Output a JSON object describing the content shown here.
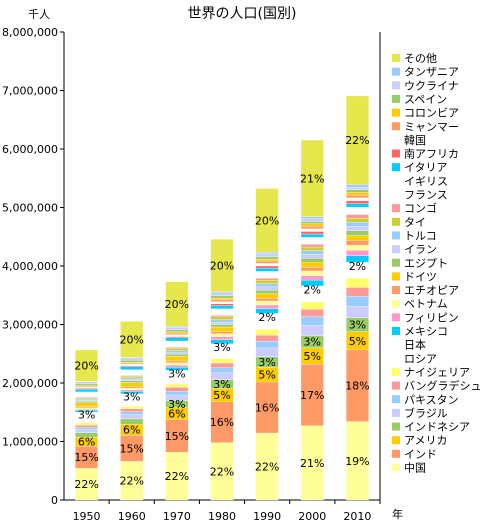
{
  "chart_data": {
    "type": "bar",
    "stacked": true,
    "title": "世界の人口(国別)",
    "ylabel": "千人",
    "xlabel": "年",
    "ylim": [
      0,
      8000000
    ],
    "yticks": [
      0,
      1000000,
      2000000,
      3000000,
      4000000,
      5000000,
      6000000,
      7000000,
      8000000
    ],
    "ytick_labels": [
      "0",
      "1,000,000",
      "2,000,000",
      "3,000,000",
      "4,000,000",
      "5,000,000",
      "6,000,000",
      "7,000,000",
      "8,000,000"
    ],
    "categories": [
      "1950",
      "1960",
      "1970",
      "1980",
      "1990",
      "2000",
      "2010"
    ],
    "grid": false,
    "legend_position": "right",
    "series": [
      {
        "name": "中国",
        "color": "#ffff99",
        "values": [
          545000,
          660000,
          818000,
          981000,
          1145000,
          1269000,
          1341000
        ],
        "labels": [
          "22%",
          "22%",
          "22%",
          "22%",
          "22%",
          "21%",
          "19%"
        ]
      },
      {
        "name": "インド",
        "color": "#ff9966",
        "values": [
          372000,
          448000,
          554000,
          697000,
          873000,
          1054000,
          1225000
        ],
        "labels": [
          "15%",
          "15%",
          "15%",
          "16%",
          "16%",
          "17%",
          "18%"
        ]
      },
      {
        "name": "アメリカ",
        "color": "#ffcc00",
        "values": [
          158000,
          186000,
          209000,
          230000,
          254000,
          282000,
          310000
        ],
        "labels": [
          "6%",
          "6%",
          "6%",
          "5%",
          "5%",
          "5%",
          "5%"
        ]
      },
      {
        "name": "インドネシア",
        "color": "#99cc66",
        "values": [
          75000,
          92000,
          117000,
          146000,
          178000,
          206000,
          240000
        ],
        "labels": [
          "",
          "",
          "3%",
          "3%",
          "3%",
          "3%",
          "3%"
        ]
      },
      {
        "name": "ブラジル",
        "color": "#ccccff",
        "values": [
          54000,
          72000,
          96000,
          121000,
          149000,
          174000,
          195000
        ],
        "labels": [
          "",
          "",
          "",
          "",
          "",
          "",
          ""
        ]
      },
      {
        "name": "パキスタン",
        "color": "#99ccff",
        "values": [
          37000,
          50000,
          65000,
          85000,
          115000,
          148000,
          174000
        ],
        "labels": [
          "",
          "",
          "",
          "",
          "",
          "",
          ""
        ]
      },
      {
        "name": "バングラデシュ",
        "color": "#ff9999",
        "values": [
          38000,
          51000,
          66000,
          82000,
          105000,
          129000,
          149000
        ],
        "labels": [
          "",
          "",
          "",
          "",
          "",
          "",
          ""
        ]
      },
      {
        "name": "ナイジェリア",
        "color": "#ffff66",
        "values": [
          38000,
          45000,
          57000,
          74000,
          97000,
          123000,
          158000
        ],
        "labels": [
          "",
          "",
          "",
          "",
          "",
          "",
          ""
        ]
      },
      {
        "name": "ロシア",
        "color": "#ffffff",
        "values": [
          103000,
          120000,
          130000,
          139000,
          148000,
          147000,
          143000
        ],
        "labels": [
          "",
          "",
          "",
          "",
          "",
          "",
          ""
        ]
      },
      {
        "name": "日本",
        "color": "#ffffff",
        "values": [
          84000,
          94000,
          104000,
          117000,
          124000,
          127000,
          128000
        ],
        "labels": [
          "3%",
          "3%",
          "3%",
          "3%",
          "2%",
          "2%",
          "2%"
        ]
      },
      {
        "name": "メキシコ",
        "color": "#00ccff",
        "values": [
          28000,
          38000,
          53000,
          69000,
          84000,
          100000,
          113000
        ],
        "labels": [
          "",
          "",
          "",
          "",
          "",
          "",
          ""
        ]
      },
      {
        "name": "フィリピン",
        "color": "#ff99cc",
        "values": [
          18000,
          26000,
          36000,
          48000,
          62000,
          78000,
          93000
        ],
        "labels": [
          "",
          "",
          "",
          "",
          "",
          "",
          ""
        ]
      },
      {
        "name": "ベトナム",
        "color": "#ffff99",
        "values": [
          25000,
          32000,
          43000,
          54000,
          68000,
          78000,
          88000
        ],
        "labels": [
          "",
          "",
          "",
          "",
          "",
          "",
          ""
        ]
      },
      {
        "name": "エチオピア",
        "color": "#ff9966",
        "values": [
          18000,
          22000,
          29000,
          36000,
          48000,
          66000,
          83000
        ],
        "labels": [
          "",
          "",
          "",
          "",
          "",
          "",
          ""
        ]
      },
      {
        "name": "ドイツ",
        "color": "#ffcc00",
        "values": [
          70000,
          73000,
          78000,
          78000,
          80000,
          82000,
          82000
        ],
        "labels": [
          "",
          "",
          "",
          "",
          "",
          "",
          ""
        ]
      },
      {
        "name": "エジプト",
        "color": "#99cc66",
        "values": [
          22000,
          28000,
          35000,
          44000,
          57000,
          68000,
          81000
        ],
        "labels": [
          "",
          "",
          "",
          "",
          "",
          "",
          ""
        ]
      },
      {
        "name": "イラン",
        "color": "#ccccff",
        "values": [
          17000,
          22000,
          29000,
          39000,
          56000,
          66000,
          74000
        ],
        "labels": [
          "",
          "",
          "",
          "",
          "",
          "",
          ""
        ]
      },
      {
        "name": "トルコ",
        "color": "#99ccff",
        "values": [
          21000,
          28000,
          35000,
          44000,
          56000,
          64000,
          73000
        ],
        "labels": [
          "",
          "",
          "",
          "",
          "",
          "",
          ""
        ]
      },
      {
        "name": "タイ",
        "color": "#cccc33",
        "values": [
          20000,
          27000,
          37000,
          47000,
          57000,
          63000,
          69000
        ],
        "labels": [
          "",
          "",
          "",
          "",
          "",
          "",
          ""
        ]
      },
      {
        "name": "コンゴ",
        "color": "#ff9999",
        "values": [
          12000,
          15000,
          20000,
          27000,
          37000,
          47000,
          62000
        ],
        "labels": [
          "",
          "",
          "",
          "",
          "",
          "",
          ""
        ]
      },
      {
        "name": "フランス",
        "color": "#ffffff",
        "values": [
          42000,
          46000,
          51000,
          54000,
          57000,
          59000,
          63000
        ],
        "labels": [
          "",
          "",
          "",
          "",
          "",
          "",
          ""
        ]
      },
      {
        "name": "イギリス",
        "color": "#ffffff",
        "values": [
          51000,
          53000,
          56000,
          56000,
          57000,
          59000,
          62000
        ],
        "labels": [
          "",
          "",
          "",
          "",
          "",
          "",
          ""
        ]
      },
      {
        "name": "イタリア",
        "color": "#00ccff",
        "values": [
          47000,
          50000,
          54000,
          56000,
          57000,
          57000,
          60000
        ],
        "labels": [
          "",
          "",
          "",
          "",
          "",
          "",
          ""
        ]
      },
      {
        "name": "南アフリカ",
        "color": "#ff6666",
        "values": [
          14000,
          17000,
          22000,
          29000,
          37000,
          45000,
          50000
        ],
        "labels": [
          "",
          "",
          "",
          "",
          "",
          "",
          ""
        ]
      },
      {
        "name": "韓国",
        "color": "#ffffff",
        "values": [
          19000,
          25000,
          32000,
          38000,
          43000,
          46000,
          48000
        ],
        "labels": [
          "",
          "",
          "",
          "",
          "",
          "",
          ""
        ]
      },
      {
        "name": "ミャンマー",
        "color": "#ff9966",
        "values": [
          17000,
          21000,
          27000,
          34000,
          41000,
          45000,
          48000
        ],
        "labels": [
          "",
          "",
          "",
          "",
          "",
          "",
          ""
        ]
      },
      {
        "name": "コロンビア",
        "color": "#ffcc00",
        "values": [
          12000,
          16000,
          21000,
          27000,
          34000,
          39000,
          46000
        ],
        "labels": [
          "",
          "",
          "",
          "",
          "",
          "",
          ""
        ]
      },
      {
        "name": "スペイン",
        "color": "#99cc66",
        "values": [
          28000,
          30000,
          34000,
          38000,
          39000,
          40000,
          46000
        ],
        "labels": [
          "",
          "",
          "",
          "",
          "",
          "",
          ""
        ]
      },
      {
        "name": "ウクライナ",
        "color": "#ccccff",
        "values": [
          37000,
          42000,
          47000,
          50000,
          51000,
          49000,
          45000
        ],
        "labels": [
          "",
          "",
          "",
          "",
          "",
          "",
          ""
        ]
      },
      {
        "name": "タンザニア",
        "color": "#99ccff",
        "values": [
          8000,
          10000,
          14000,
          19000,
          26000,
          34000,
          45000
        ],
        "labels": [
          "",
          "",
          "",
          "",
          "",
          "",
          ""
        ]
      },
      {
        "name": "その他",
        "color": "#e6e64d",
        "values": [
          534000,
          616000,
          761000,
          899000,
          1090000,
          1309000,
          1513000
        ],
        "labels": [
          "20%",
          "20%",
          "20%",
          "20%",
          "20%",
          "21%",
          "22%"
        ]
      }
    ]
  }
}
